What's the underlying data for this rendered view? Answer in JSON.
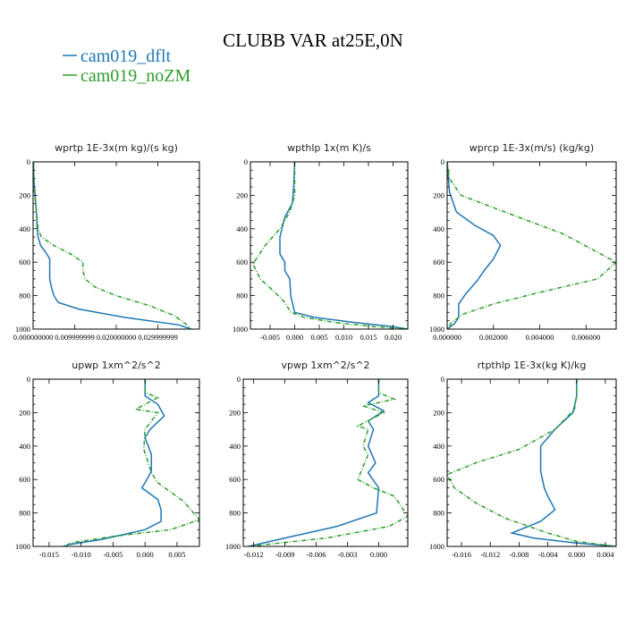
{
  "title": "CLUBB VAR at25E,0N",
  "colors": {
    "dflt": "#1f77b4",
    "noZM": "#2ca02c"
  },
  "legend": [
    {
      "label": "cam019_dflt",
      "color": "#1f77b4"
    },
    {
      "label": "cam019_noZM",
      "color": "#2ca02c"
    }
  ],
  "chart_data": [
    {
      "type": "line",
      "title": "wprtp  1E-3x(m kg)/(s kg)",
      "xlim": [
        0,
        0.04
      ],
      "ylim": [
        1000,
        0
      ],
      "xticks": [
        0,
        0.01,
        0.02,
        0.03
      ],
      "xtick_labels": [
        "0.000000000",
        "0.009999999",
        "0.020000000",
        "0.029999999"
      ],
      "yticks": [
        0,
        200,
        400,
        600,
        800,
        1000
      ],
      "series": [
        {
          "name": "cam019_dflt",
          "color": "#1f77b4",
          "dash": false,
          "x": [
            0.0001,
            0.0002,
            0.0005,
            0.0008,
            0.001,
            0.0012,
            0.0018,
            0.003,
            0.004,
            0.004,
            0.004,
            0.0045,
            0.005,
            0.006,
            0.011,
            0.022,
            0.035,
            0.038
          ],
          "y": [
            0,
            100,
            200,
            300,
            400,
            450,
            500,
            540,
            580,
            650,
            700,
            760,
            800,
            840,
            880,
            930,
            975,
            1000
          ]
        },
        {
          "name": "cam019_noZM",
          "color": "#2ca02c",
          "dash": true,
          "x": [
            0.0001,
            0.0001,
            0.0004,
            0.0008,
            0.0012,
            0.002,
            0.005,
            0.009,
            0.012,
            0.012,
            0.0125,
            0.015,
            0.02,
            0.028,
            0.034,
            0.037,
            0.038
          ],
          "y": [
            0,
            150,
            200,
            300,
            400,
            450,
            500,
            550,
            600,
            650,
            700,
            750,
            800,
            860,
            920,
            975,
            1000
          ]
        }
      ]
    },
    {
      "type": "line",
      "title": "wpthlp  1x(m K)/s",
      "xlim": [
        -0.009,
        0.023
      ],
      "ylim": [
        1000,
        0
      ],
      "xticks": [
        -0.005,
        0,
        0.005,
        0.01,
        0.015,
        0.02
      ],
      "xtick_labels": [
        "-0.005",
        "0.000",
        "0.005",
        "0.010",
        "0.015",
        "0.020"
      ],
      "yticks": [
        0,
        200,
        400,
        600,
        800,
        1000
      ],
      "series": [
        {
          "name": "cam019_dflt",
          "color": "#1f77b4",
          "dash": false,
          "x": [
            0,
            -0.0002,
            -0.0005,
            -0.002,
            -0.003,
            -0.003,
            -0.002,
            -0.002,
            -0.001,
            -0.0008,
            0.0,
            0.004,
            0.012,
            0.02,
            0.023
          ],
          "y": [
            0,
            150,
            250,
            330,
            450,
            550,
            600,
            650,
            700,
            800,
            900,
            930,
            960,
            985,
            1000
          ]
        },
        {
          "name": "cam019_noZM",
          "color": "#2ca02c",
          "dash": true,
          "x": [
            0,
            0,
            -0.001,
            -0.003,
            -0.006,
            -0.0085,
            -0.007,
            -0.004,
            -0.002,
            -0.0008,
            0.002,
            0.008,
            0.016,
            0.023
          ],
          "y": [
            0,
            200,
            300,
            400,
            500,
            610,
            700,
            780,
            840,
            900,
            930,
            960,
            985,
            1000
          ]
        }
      ]
    },
    {
      "type": "line",
      "title": "wprcp  1E-3x(m/s) (kg/kg)",
      "xlim": [
        0,
        0.0073
      ],
      "ylim": [
        1000,
        0
      ],
      "xticks": [
        0,
        0.002,
        0.004,
        0.006
      ],
      "xtick_labels": [
        "0.000000",
        "0.002000",
        "0.004000",
        "0.006000"
      ],
      "yticks": [
        0,
        200,
        400,
        600,
        800,
        1000
      ],
      "series": [
        {
          "name": "cam019_dflt",
          "color": "#1f77b4",
          "dash": false,
          "x": [
            0,
            0.0001,
            0.0004,
            0.0012,
            0.002,
            0.0023,
            0.002,
            0.0016,
            0.0013,
            0.0008,
            0.0005,
            0.0005,
            0.0003,
            0
          ],
          "y": [
            0,
            180,
            300,
            380,
            440,
            500,
            580,
            650,
            710,
            790,
            850,
            930,
            970,
            1000
          ]
        },
        {
          "name": "cam019_noZM",
          "color": "#2ca02c",
          "dash": true,
          "x": [
            0,
            0.0001,
            0.0006,
            0.0025,
            0.005,
            0.0073,
            0.0065,
            0.004,
            0.002,
            0.0007,
            0.0002,
            0
          ],
          "y": [
            0,
            100,
            200,
            300,
            430,
            600,
            700,
            780,
            850,
            910,
            960,
            1000
          ]
        }
      ]
    },
    {
      "type": "line",
      "title": "upwp  1xm^2/s^2",
      "xlim": [
        -0.0175,
        0.0085
      ],
      "ylim": [
        1000,
        0
      ],
      "xticks": [
        -0.015,
        -0.01,
        -0.005,
        0,
        0.005
      ],
      "xtick_labels": [
        "-0.015",
        "-0.010",
        "-0.005",
        "0.000",
        "0.005"
      ],
      "yticks": [
        0,
        200,
        400,
        600,
        800,
        1000
      ],
      "series": [
        {
          "name": "cam019_dflt",
          "color": "#1f77b4",
          "dash": false,
          "x": [
            0,
            0,
            0.002,
            0.003,
            0.0008,
            0,
            0.001,
            0.001,
            0,
            -0.0005,
            0.002,
            0.0025,
            0.0025,
            0,
            -0.007,
            -0.012,
            -0.0125
          ],
          "y": [
            0,
            100,
            150,
            220,
            300,
            350,
            450,
            550,
            620,
            650,
            720,
            780,
            850,
            900,
            960,
            990,
            1000
          ]
        },
        {
          "name": "cam019_noZM",
          "color": "#2ca02c",
          "dash": true,
          "x": [
            0,
            0,
            0.002,
            -0.0015,
            0.002,
            0,
            -0.0002,
            0.0005,
            0.001,
            0.002,
            0.006,
            0.0085,
            0.004,
            -0.005,
            -0.011,
            -0.013
          ],
          "y": [
            0,
            80,
            110,
            180,
            200,
            300,
            420,
            500,
            560,
            620,
            730,
            840,
            900,
            940,
            975,
            1000
          ]
        }
      ]
    },
    {
      "type": "line",
      "title": "vpwp  1xm^2/s^2",
      "xlim": [
        -0.013,
        0.0028
      ],
      "ylim": [
        1000,
        0
      ],
      "xticks": [
        -0.012,
        -0.009,
        -0.006,
        -0.003,
        0
      ],
      "xtick_labels": [
        "-0.012",
        "-0.009",
        "-0.006",
        "-0.003",
        "0.000"
      ],
      "yticks": [
        0,
        200,
        400,
        600,
        800,
        1000
      ],
      "series": [
        {
          "name": "cam019_dflt",
          "color": "#1f77b4",
          "dash": false,
          "x": [
            0,
            0,
            -0.001,
            0.0005,
            -0.001,
            -0.0005,
            -0.001,
            -0.0003,
            -0.001,
            0,
            -0.0002,
            -0.004,
            -0.009,
            -0.0125
          ],
          "y": [
            0,
            100,
            140,
            190,
            250,
            300,
            400,
            500,
            560,
            650,
            800,
            880,
            950,
            1000
          ]
        },
        {
          "name": "cam019_noZM",
          "color": "#2ca02c",
          "dash": true,
          "x": [
            0,
            0,
            0.0015,
            -0.0015,
            0.0005,
            -0.002,
            -0.001,
            -0.0015,
            -0.001,
            -0.002,
            -0.0005,
            0.0015,
            0.0028,
            0.001,
            -0.005,
            -0.0125
          ],
          "y": [
            0,
            80,
            120,
            160,
            200,
            280,
            300,
            400,
            450,
            600,
            650,
            700,
            820,
            880,
            950,
            1000
          ]
        }
      ]
    },
    {
      "type": "line",
      "title": "rtpthlp  1E-3x(kg K)/kg",
      "xlim": [
        -0.018,
        0.0055
      ],
      "ylim": [
        1000,
        0
      ],
      "xticks": [
        -0.016,
        -0.012,
        -0.008,
        -0.004,
        0,
        0.004
      ],
      "xtick_labels": [
        "-0.016",
        "-0.012",
        "-0.008",
        "-0.004",
        "0.000",
        "0.004"
      ],
      "yticks": [
        0,
        200,
        400,
        600,
        800,
        1000
      ],
      "series": [
        {
          "name": "cam019_dflt",
          "color": "#1f77b4",
          "dash": false,
          "x": [
            0,
            0,
            -0.0005,
            -0.003,
            -0.005,
            -0.005,
            -0.0045,
            -0.004,
            -0.003,
            -0.005,
            -0.009,
            -0.006,
            0.0,
            0.0055
          ],
          "y": [
            0,
            100,
            200,
            300,
            400,
            550,
            650,
            700,
            780,
            850,
            920,
            950,
            980,
            1000
          ]
        },
        {
          "name": "cam019_noZM",
          "color": "#2ca02c",
          "dash": true,
          "x": [
            0,
            0,
            -0.0003,
            -0.003,
            -0.008,
            -0.014,
            -0.018,
            -0.017,
            -0.014,
            -0.01,
            -0.004,
            0.0,
            0.0055
          ],
          "y": [
            0,
            100,
            180,
            300,
            420,
            500,
            570,
            650,
            740,
            830,
            920,
            970,
            1000
          ]
        }
      ]
    }
  ]
}
